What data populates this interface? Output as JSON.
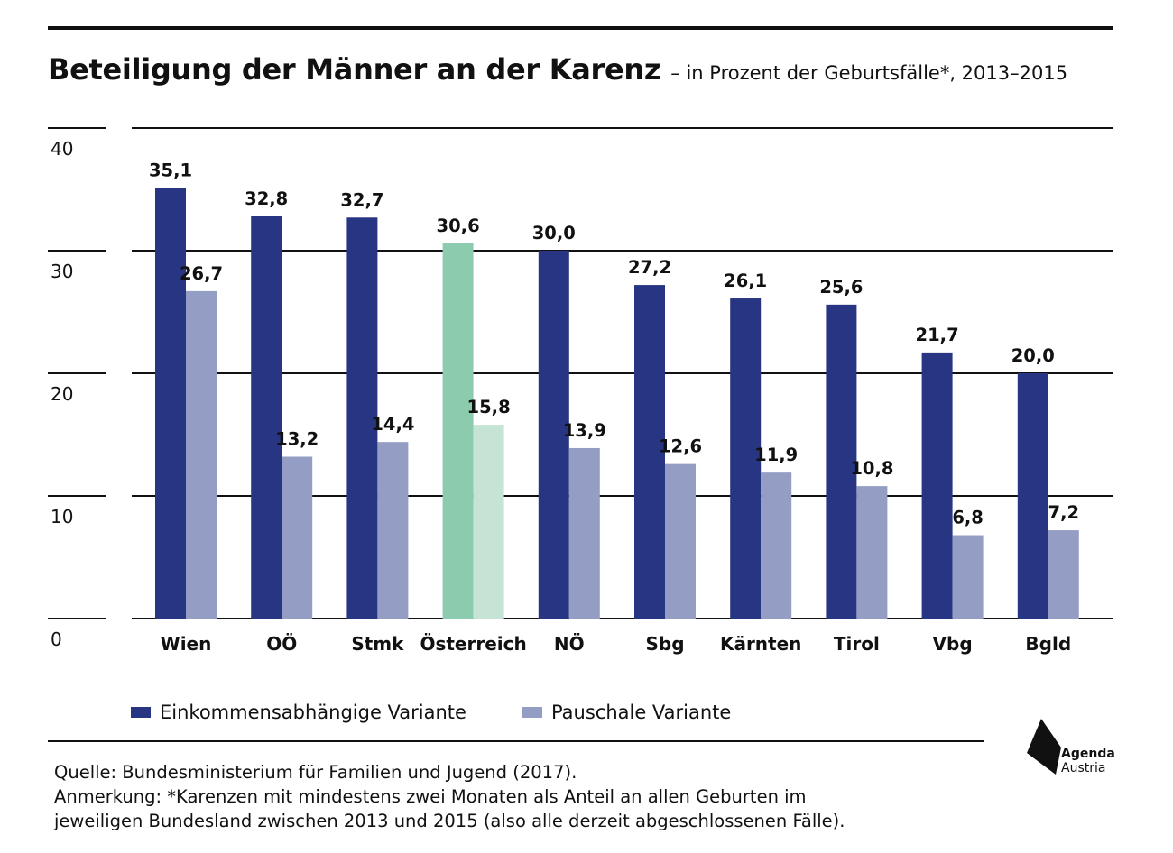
{
  "title": "Beteiligung der Männer an der Karenz",
  "subtitle": "– in Prozent der Geburtsfälle*, 2013–2015",
  "colors": {
    "series1": "#283582",
    "series2": "#949dc4",
    "highlight1": "#8ccbad",
    "highlight2": "#c6e4d6",
    "grid": "#111111"
  },
  "chart_data": {
    "type": "bar",
    "categories": [
      "Wien",
      "OÖ",
      "Stmk",
      "Österreich",
      "NÖ",
      "Sbg",
      "Kärnten",
      "Tirol",
      "Vbg",
      "Bgld"
    ],
    "series": [
      {
        "name": "Einkommensabhängige Variante",
        "values": [
          35.1,
          32.8,
          32.7,
          30.6,
          30.0,
          27.2,
          26.1,
          25.6,
          21.7,
          20.0
        ],
        "labels": [
          "35,1",
          "32,8",
          "32,7",
          "30,6",
          "30,0",
          "27,2",
          "26,1",
          "25,6",
          "21,7",
          "20,0"
        ]
      },
      {
        "name": "Pauschale Variante",
        "values": [
          26.7,
          13.2,
          14.4,
          15.8,
          13.9,
          12.6,
          11.9,
          10.8,
          6.8,
          7.2
        ],
        "labels": [
          "26,7",
          "13,2",
          "14,4",
          "15,8",
          "13,9",
          "12,6",
          "11,9",
          "10,8",
          "6,8",
          "7,2"
        ]
      }
    ],
    "highlight_category": "Österreich",
    "yticks": [
      "0",
      "10",
      "20",
      "30",
      "40"
    ],
    "ylim": [
      0,
      40
    ],
    "grid": true,
    "legend_position": "bottom-left"
  },
  "legend": {
    "item1": "Einkommensabhängige Variante",
    "item2": "Pauschale Variante"
  },
  "footnote": {
    "line1": "Quelle: Bundesministerium für Familien und Jugend (2017).",
    "line2": "Anmerkung: *Karenzen mit mindestens zwei Monaten als Anteil an allen Geburten im",
    "line3": "jeweiligen Bundesland zwischen 2013 und 2015 (also alle derzeit abgeschlossenen Fälle)."
  },
  "logo": {
    "line1": "Agenda",
    "line2": "Austria",
    "icon": "agenda-austria-logo-icon"
  }
}
